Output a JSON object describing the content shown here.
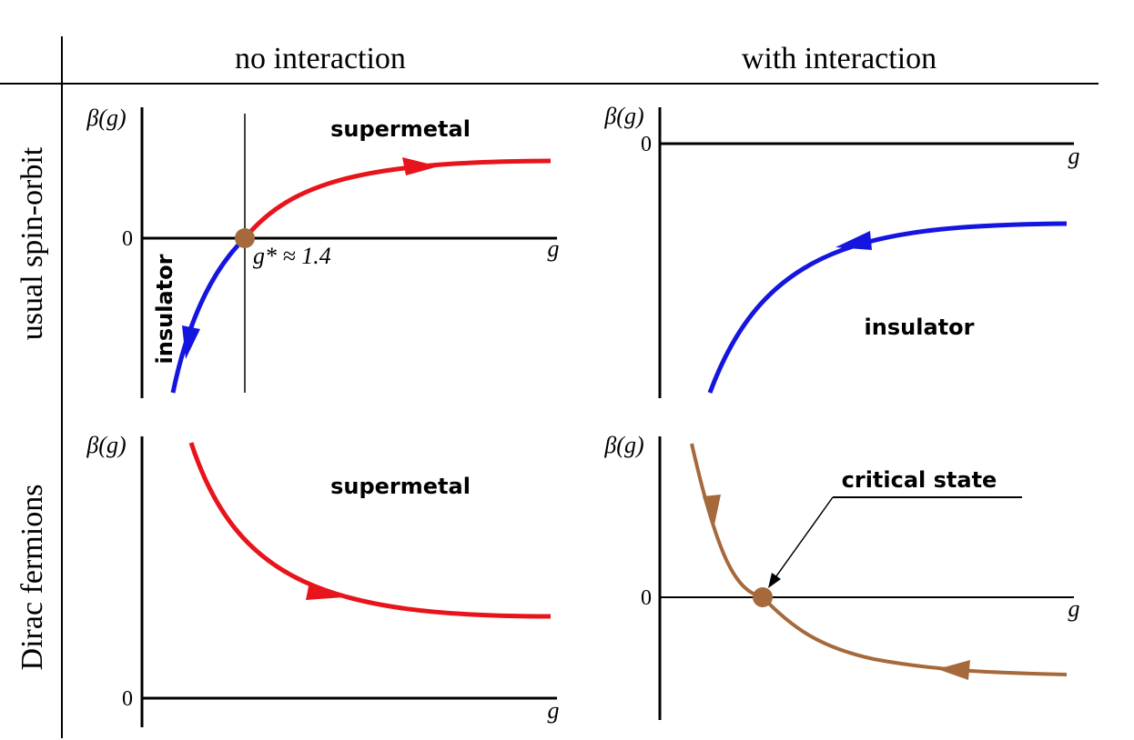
{
  "columns": [
    "no interaction",
    "with interaction"
  ],
  "rows": [
    "usual spin-orbit",
    "Dirac fermions"
  ],
  "panels": [
    {
      "y_label": "β(g)",
      "x_label": "g",
      "zero_label": "0",
      "region_labels": [
        "supermetal",
        "insulator"
      ],
      "fixed_point_label": "g* ≈ 1.4"
    },
    {
      "y_label": "β(g)",
      "x_label": "g",
      "zero_label": "0",
      "region_labels": [
        "insulator"
      ]
    },
    {
      "y_label": "β(g)",
      "x_label": "g",
      "zero_label": "0",
      "region_labels": [
        "supermetal"
      ]
    },
    {
      "y_label": "β(g)",
      "x_label": "g",
      "zero_label": "0",
      "region_labels": [
        "critical state"
      ]
    }
  ]
}
